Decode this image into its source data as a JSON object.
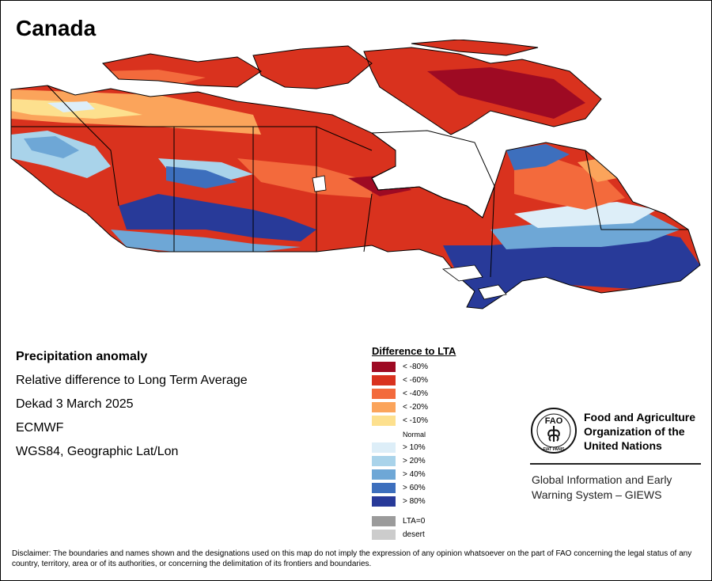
{
  "title": "Canada",
  "info": {
    "heading": "Precipitation anomaly",
    "line1": "Relative difference to Long Term Average",
    "line2": "Dekad 3 March 2025",
    "line3": "ECMWF",
    "line4": "WGS84, Geographic Lat/Lon"
  },
  "legend": {
    "title": "Difference to LTA",
    "items": [
      {
        "label": "< -80%",
        "color": "#9e0a23"
      },
      {
        "label": "< -60%",
        "color": "#d9321e"
      },
      {
        "label": "< -40%",
        "color": "#f36a3c"
      },
      {
        "label": "< -20%",
        "color": "#fba45b"
      },
      {
        "label": "< -10%",
        "color": "#fde08e"
      }
    ],
    "normal_label": "Normal",
    "items_wet": [
      {
        "label": "> 10%",
        "color": "#ddeef8"
      },
      {
        "label": "> 20%",
        "color": "#a9d3ea"
      },
      {
        "label": "> 40%",
        "color": "#6ea7d6"
      },
      {
        "label": "> 60%",
        "color": "#3d6fbd"
      },
      {
        "label": "> 80%",
        "color": "#283a99"
      }
    ],
    "lta0": {
      "label": "LTA=0",
      "color": "#9b9b9b"
    },
    "desert": {
      "label": "desert",
      "color": "#cccccc"
    }
  },
  "fao": {
    "logo_text": "FAO",
    "logo_motto": "FIAT PANIS",
    "name_line1": "Food and Agriculture",
    "name_line2": "Organization of the",
    "name_line3": "United Nations",
    "giews_line1": "Global Information and Early",
    "giews_line2": "Warning System – GIEWS"
  },
  "disclaimer": "Disclaimer: The boundaries and names shown and the designations used on this map do not imply the expression of any opinion whatsoever on the part of FAO concerning the legal status of any country, territory, area or of its authorities, or concerning the delimitation of its frontiers and boundaries."
}
